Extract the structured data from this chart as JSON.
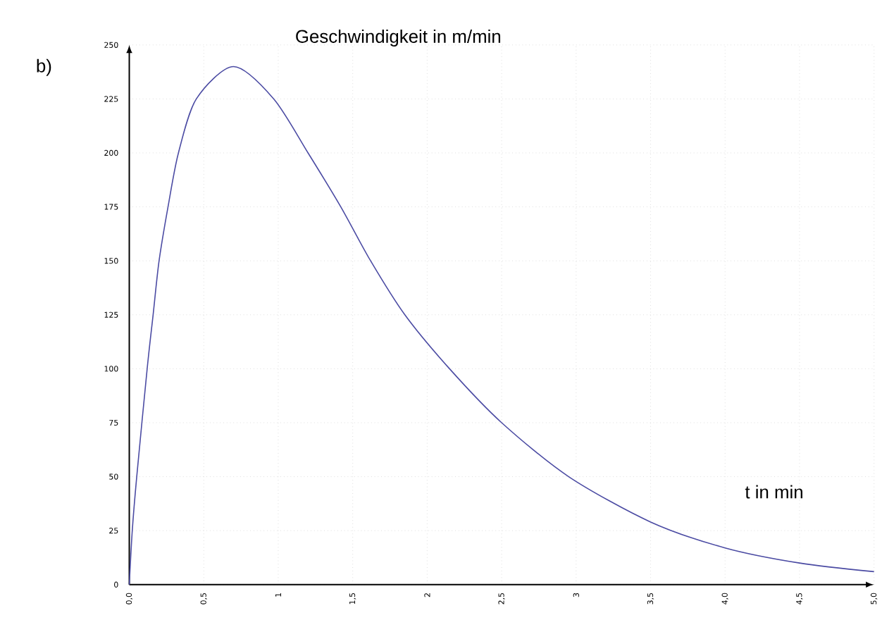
{
  "chart_data": {
    "type": "line",
    "title": "Geschwindigkeit in  m/min",
    "xlabel": "t in min",
    "annotations": [
      "b)"
    ],
    "series": [
      {
        "color": "#4b4ba3",
        "x": [
          0,
          0.02,
          0.05,
          0.12,
          0.16,
          0.2,
          0.26,
          0.33,
          0.45,
          0.7,
          0.97,
          1.2,
          1.42,
          1.62,
          1.85,
          2.15,
          2.5,
          2.95,
          3.5,
          4,
          4.5,
          5
        ],
        "values": [
          0,
          25,
          50,
          100,
          125,
          150,
          175,
          200,
          225,
          240,
          225,
          200,
          175,
          150,
          125,
          100,
          75,
          50,
          29,
          17,
          10,
          6
        ]
      }
    ],
    "xlim": [
      0,
      5
    ],
    "ylim": [
      0,
      250
    ],
    "xticks": [
      {
        "value": 0,
        "label": "0,0"
      },
      {
        "value": 0.5,
        "label": "0,5"
      },
      1,
      {
        "value": 1.5,
        "label": "1,5"
      },
      2,
      {
        "value": 2.5,
        "label": "2,5"
      },
      3,
      {
        "value": 3.5,
        "label": "3,5"
      },
      {
        "value": 4,
        "label": "4,0"
      },
      {
        "value": 4.5,
        "label": "4,5"
      },
      {
        "value": 5,
        "label": "5,0"
      }
    ],
    "yticks": [
      0,
      25,
      50,
      75,
      100,
      125,
      150,
      175,
      200,
      225,
      250
    ],
    "grid": true,
    "marker": "none",
    "line_style": "solid"
  }
}
